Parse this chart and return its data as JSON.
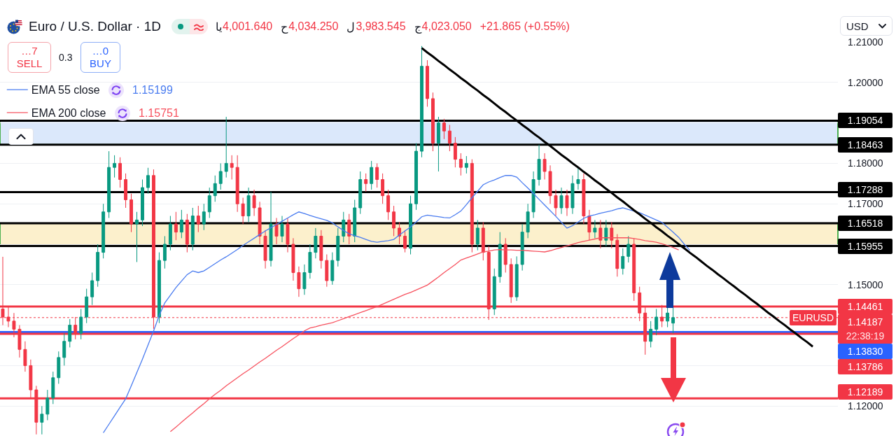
{
  "chart_data": {
    "type": "candlestick",
    "title": "Euro / U.S. Dollar · 1D",
    "categories": [
      null,
      null,
      null,
      null,
      null,
      null,
      null,
      null,
      null,
      null,
      null,
      null,
      null,
      null,
      null,
      null,
      null,
      null,
      null,
      null,
      null,
      null,
      null,
      null,
      null,
      null,
      null,
      null,
      null,
      null,
      null,
      null,
      null,
      null,
      null,
      null,
      null,
      null,
      null,
      null,
      null,
      null,
      null,
      null,
      null,
      null,
      null,
      null,
      null,
      null,
      null,
      null,
      null,
      null,
      null,
      null,
      null,
      null,
      null,
      null,
      null,
      null,
      null,
      null,
      null,
      null,
      null,
      null,
      null,
      null,
      null,
      null,
      null,
      null,
      null,
      null,
      null,
      null,
      null,
      null,
      null,
      null,
      null,
      null,
      null,
      null,
      null,
      null,
      null,
      null,
      null,
      null,
      null,
      null,
      null,
      null,
      null,
      null,
      null,
      null,
      null,
      null,
      null,
      null,
      null,
      null,
      null,
      null,
      null,
      null,
      null,
      null,
      null,
      null,
      null,
      null,
      null,
      null,
      null,
      null,
      null,
      null,
      null,
      null,
      null,
      null,
      null,
      null,
      null,
      null,
      null,
      null,
      null,
      null,
      null,
      null,
      null,
      null,
      null,
      null,
      null,
      null,
      null,
      null,
      null,
      null,
      null,
      null,
      null,
      null
    ],
    "ohlc": [
      [
        1.144,
        1.1569,
        1.14,
        1.142
      ],
      [
        1.142,
        1.1445,
        1.1395,
        1.141
      ],
      [
        1.141,
        1.143,
        1.137,
        1.139
      ],
      [
        1.139,
        1.14,
        1.132,
        1.134
      ],
      [
        1.134,
        1.136,
        1.1285,
        1.13
      ],
      [
        1.13,
        1.1315,
        1.122,
        1.124
      ],
      [
        1.124,
        1.125,
        1.113,
        1.116
      ],
      [
        1.116,
        1.12,
        1.113,
        1.118
      ],
      [
        1.118,
        1.124,
        1.1165,
        1.122
      ],
      [
        1.122,
        1.1285,
        1.1205,
        1.127
      ],
      [
        1.127,
        1.1335,
        1.1255,
        1.132
      ],
      [
        1.132,
        1.138,
        1.13,
        1.136
      ],
      [
        1.136,
        1.1415,
        1.1345,
        1.14
      ],
      [
        1.14,
        1.142,
        1.1365,
        1.138
      ],
      [
        1.138,
        1.144,
        1.1365,
        1.142
      ],
      [
        1.142,
        1.149,
        1.1405,
        1.147
      ],
      [
        1.147,
        1.153,
        1.145,
        1.151
      ],
      [
        1.151,
        1.16,
        1.1495,
        1.158
      ],
      [
        1.158,
        1.17,
        1.1565,
        1.168
      ],
      [
        1.168,
        1.183,
        1.1665,
        1.179
      ],
      [
        1.179,
        1.182,
        1.1765,
        1.18
      ],
      [
        1.18,
        1.1815,
        1.174,
        1.176
      ],
      [
        1.176,
        1.1775,
        1.169,
        1.171
      ],
      [
        1.171,
        1.1725,
        1.163,
        1.165
      ],
      [
        1.165,
        1.168,
        1.1556,
        1.166
      ],
      [
        1.166,
        1.176,
        1.1645,
        1.174
      ],
      [
        1.174,
        1.1789,
        1.1725,
        1.177
      ],
      [
        1.177,
        1.1785,
        1.1391,
        1.142
      ],
      [
        1.142,
        1.158,
        1.1405,
        1.156
      ],
      [
        1.156,
        1.162,
        1.154,
        1.16
      ],
      [
        1.16,
        1.167,
        1.1585,
        1.165
      ],
      [
        1.165,
        1.168,
        1.161,
        1.163
      ],
      [
        1.163,
        1.1685,
        1.1615,
        1.166
      ],
      [
        1.166,
        1.1675,
        1.158,
        1.16
      ],
      [
        1.16,
        1.169,
        1.1585,
        1.167
      ],
      [
        1.167,
        1.1695,
        1.163,
        1.165
      ],
      [
        1.165,
        1.17,
        1.1635,
        1.168
      ],
      [
        1.168,
        1.174,
        1.1665,
        1.172
      ],
      [
        1.172,
        1.177,
        1.1705,
        1.175
      ],
      [
        1.175,
        1.18,
        1.1735,
        1.178
      ],
      [
        1.178,
        1.1915,
        1.1765,
        1.18
      ],
      [
        1.18,
        1.182,
        1.176,
        1.179
      ],
      [
        1.179,
        1.182,
        1.168,
        1.17
      ],
      [
        1.17,
        1.1715,
        1.165,
        1.167
      ],
      [
        1.167,
        1.174,
        1.1655,
        1.172
      ],
      [
        1.172,
        1.1735,
        1.167,
        1.169
      ],
      [
        1.169,
        1.1705,
        1.16,
        1.162
      ],
      [
        1.162,
        1.1635,
        1.154,
        1.156
      ],
      [
        1.156,
        1.173,
        1.1545,
        1.165
      ],
      [
        1.165,
        1.1665,
        1.16,
        1.162
      ],
      [
        1.162,
        1.167,
        1.1605,
        1.165
      ],
      [
        1.165,
        1.1665,
        1.158,
        1.16
      ],
      [
        1.16,
        1.1615,
        1.151,
        1.153
      ],
      [
        1.153,
        1.1545,
        1.147,
        1.149
      ],
      [
        1.149,
        1.155,
        1.1475,
        1.153
      ],
      [
        1.153,
        1.16,
        1.1515,
        1.158
      ],
      [
        1.158,
        1.164,
        1.1565,
        1.162
      ],
      [
        1.162,
        1.1635,
        1.154,
        1.156
      ],
      [
        1.156,
        1.1575,
        1.1495,
        1.151
      ],
      [
        1.151,
        1.158,
        1.15,
        1.156
      ],
      [
        1.156,
        1.164,
        1.1545,
        1.162
      ],
      [
        1.162,
        1.168,
        1.1605,
        1.166
      ],
      [
        1.166,
        1.1675,
        1.16,
        1.162
      ],
      [
        1.162,
        1.171,
        1.1605,
        1.169
      ],
      [
        1.169,
        1.178,
        1.1675,
        1.176
      ],
      [
        1.176,
        1.1775,
        1.173,
        1.175
      ],
      [
        1.175,
        1.1806,
        1.1735,
        1.179
      ],
      [
        1.179,
        1.18,
        1.174,
        1.176
      ],
      [
        1.176,
        1.1775,
        1.17,
        1.172
      ],
      [
        1.172,
        1.1735,
        1.166,
        1.168
      ],
      [
        1.168,
        1.1695,
        1.162,
        1.164
      ],
      [
        1.164,
        1.1655,
        1.16,
        1.162
      ],
      [
        1.162,
        1.1635,
        1.158,
        1.159
      ],
      [
        1.159,
        1.172,
        1.1575,
        1.17
      ],
      [
        1.17,
        1.185,
        1.1685,
        1.183
      ],
      [
        1.183,
        1.209,
        1.1815,
        1.204
      ],
      [
        1.204,
        1.2055,
        1.194,
        1.196
      ],
      [
        1.196,
        1.1975,
        1.183,
        1.185
      ],
      [
        1.185,
        1.1915,
        1.178,
        1.19
      ],
      [
        1.19,
        1.191,
        1.186,
        1.188
      ],
      [
        1.188,
        1.1895,
        1.183,
        1.185
      ],
      [
        1.185,
        1.1865,
        1.179,
        1.181
      ],
      [
        1.181,
        1.1825,
        1.177,
        1.179
      ],
      [
        1.179,
        1.1818,
        1.1775,
        1.18
      ],
      [
        1.18,
        1.181,
        1.158,
        1.16
      ],
      [
        1.16,
        1.166,
        1.1585,
        1.164
      ],
      [
        1.164,
        1.1655,
        1.156,
        1.158
      ],
      [
        1.158,
        1.1595,
        1.1413,
        1.144
      ],
      [
        1.144,
        1.154,
        1.1425,
        1.152
      ],
      [
        1.152,
        1.163,
        1.1505,
        1.16
      ],
      [
        1.16,
        1.1615,
        1.153,
        1.155
      ],
      [
        1.155,
        1.1565,
        1.1455,
        1.147
      ],
      [
        1.147,
        1.157,
        1.146,
        1.155
      ],
      [
        1.155,
        1.165,
        1.1535,
        1.163
      ],
      [
        1.163,
        1.17,
        1.1615,
        1.168
      ],
      [
        1.168,
        1.178,
        1.1665,
        1.176
      ],
      [
        1.176,
        1.1846,
        1.1745,
        1.181
      ],
      [
        1.181,
        1.1825,
        1.176,
        1.178
      ],
      [
        1.178,
        1.1795,
        1.17,
        1.172
      ],
      [
        1.172,
        1.1735,
        1.167,
        1.169
      ],
      [
        1.169,
        1.174,
        1.1675,
        1.172
      ],
      [
        1.172,
        1.1735,
        1.167,
        1.169
      ],
      [
        1.169,
        1.177,
        1.1675,
        1.175
      ],
      [
        1.175,
        1.179,
        1.1735,
        1.176
      ],
      [
        1.176,
        1.1775,
        1.165,
        1.167
      ],
      [
        1.167,
        1.1685,
        1.161,
        1.163
      ],
      [
        1.163,
        1.166,
        1.1615,
        1.164
      ],
      [
        1.164,
        1.166,
        1.159,
        1.161
      ],
      [
        1.161,
        1.166,
        1.1595,
        1.164
      ],
      [
        1.164,
        1.1655,
        1.159,
        1.161
      ],
      [
        1.161,
        1.1625,
        1.152,
        1.154
      ],
      [
        1.154,
        1.159,
        1.1525,
        1.157
      ],
      [
        1.157,
        1.162,
        1.1555,
        1.16
      ],
      [
        1.16,
        1.1615,
        1.146,
        1.148
      ],
      [
        1.148,
        1.1495,
        1.141,
        1.143
      ],
      [
        1.143,
        1.1445,
        1.1327,
        1.136
      ],
      [
        1.136,
        1.141,
        1.1345,
        1.139
      ],
      [
        1.139,
        1.144,
        1.1375,
        1.142
      ],
      [
        1.142,
        1.145,
        1.1395,
        1.141
      ],
      [
        1.141,
        1.1445,
        1.1395,
        1.143
      ],
      [
        1.1405,
        1.1445,
        1.138,
        1.14187
      ],
      null,
      null,
      null,
      null,
      null,
      null,
      null,
      null,
      null,
      null,
      null,
      null,
      null,
      null,
      null,
      null,
      null,
      null,
      null,
      null,
      null,
      null,
      null,
      null,
      null,
      null,
      null,
      null,
      null
    ],
    "colors": [
      "#f23645",
      "#f23645",
      "#f23645",
      "#f23645",
      "#f23645",
      "#f23645",
      "#f23645",
      "#089981",
      "#089981",
      "#089981",
      "#089981",
      "#089981",
      "#089981",
      "#f23645",
      "#089981",
      "#089981",
      "#089981",
      "#089981",
      "#089981",
      "#089981",
      "#089981",
      "#f23645",
      "#f23645",
      "#f23645",
      "#089981",
      "#089981",
      "#089981",
      "#f23645",
      "#089981",
      "#089981",
      "#089981",
      "#f23645",
      "#089981",
      "#f23645",
      "#089981",
      "#f23645",
      "#089981",
      "#089981",
      "#089981",
      "#089981",
      "#089981",
      "#f23645",
      "#f23645",
      "#f23645",
      "#089981",
      "#f23645",
      "#f23645",
      "#f23645",
      "#089981",
      "#f23645",
      "#089981",
      "#f23645",
      "#f23645",
      "#f23645",
      "#089981",
      "#089981",
      "#089981",
      "#f23645",
      "#f23645",
      "#089981",
      "#089981",
      "#089981",
      "#f23645",
      "#089981",
      "#089981",
      "#f23645",
      "#089981",
      "#f23645",
      "#f23645",
      "#f23645",
      "#f23645",
      "#f23645",
      "#f23645",
      "#089981",
      "#089981",
      "#089981",
      "#f23645",
      "#f23645",
      "#089981",
      "#f23645",
      "#f23645",
      "#f23645",
      "#f23645",
      "#089981",
      "#f23645",
      "#089981",
      "#f23645",
      "#f23645",
      "#089981",
      "#089981",
      "#f23645",
      "#f23645",
      "#089981",
      "#089981",
      "#089981",
      "#089981",
      "#089981",
      "#f23645",
      "#f23645",
      "#f23645",
      "#089981",
      "#f23645",
      "#089981",
      "#089981",
      "#f23645",
      "#f23645",
      "#089981",
      "#f23645",
      "#089981",
      "#f23645",
      "#f23645",
      "#089981",
      "#089981",
      "#f23645",
      "#f23645",
      "#f23645",
      "#089981",
      "#089981",
      "#f23645",
      "#089981",
      "#089981",
      null,
      null,
      null,
      null,
      null,
      null,
      null,
      null,
      null,
      null,
      null,
      null,
      null,
      null,
      null,
      null,
      null,
      null,
      null,
      null,
      null,
      null,
      null,
      null,
      null,
      null,
      null,
      null,
      null
    ],
    "series": [
      {
        "name": "EMA 55 close",
        "type": "line",
        "color": "#4a7cf0",
        "values": [
          null,
          null,
          null,
          null,
          null,
          null,
          null,
          null,
          null,
          null,
          null,
          null,
          null,
          null,
          null,
          null,
          null,
          null,
          1.1134,
          1.1155,
          1.1176,
          1.1197,
          1.1218,
          1.125,
          1.1283,
          1.1316,
          1.1351,
          1.1386,
          1.1424,
          1.1455,
          1.1474,
          1.1493,
          1.1509,
          1.1525,
          1.1534,
          1.153,
          1.1534,
          1.1543,
          1.1552,
          1.1561,
          1.1569,
          1.1578,
          1.1587,
          1.1597,
          1.1606,
          1.1615,
          1.1624,
          1.1633,
          1.1641,
          1.1649,
          1.1657,
          1.1665,
          1.1673,
          1.168,
          1.1676,
          1.1671,
          1.1667,
          1.1663,
          1.1659,
          1.1653,
          1.1643,
          1.1634,
          1.1626,
          1.1621,
          1.1617,
          1.1612,
          1.1607,
          1.1605,
          1.1607,
          1.1609,
          1.1612,
          1.1623,
          1.1633,
          1.1643,
          1.1655,
          1.1668,
          1.1672,
          1.167,
          1.1668,
          1.1666,
          1.1665,
          1.1673,
          1.1682,
          1.1698,
          1.1715,
          1.1731,
          1.1747,
          1.1754,
          1.1759,
          1.1765,
          1.177,
          1.177,
          1.1766,
          1.1752,
          1.1739,
          1.1725,
          1.1711,
          1.1697,
          1.1683,
          1.1669,
          1.1654,
          1.164,
          1.1646,
          1.1655,
          1.1664,
          1.167,
          1.1673,
          1.1677,
          1.168,
          1.1683,
          1.1687,
          1.169,
          1.1686,
          1.1682,
          1.1678,
          1.1672,
          1.1666,
          1.166,
          1.1654,
          1.1642,
          1.163,
          1.1617,
          1.16,
          1.1585,
          null,
          null,
          null,
          null,
          null,
          null,
          null,
          null,
          null,
          null,
          null,
          null,
          null,
          null,
          null,
          null,
          null,
          null,
          null,
          null,
          null,
          null,
          null,
          null,
          null,
          null
        ]
      },
      {
        "name": "EMA 200 close",
        "type": "line",
        "color": "#f7525f",
        "values": [
          null,
          null,
          null,
          null,
          null,
          null,
          null,
          null,
          null,
          null,
          null,
          null,
          null,
          null,
          null,
          null,
          null,
          null,
          null,
          null,
          null,
          null,
          null,
          null,
          null,
          null,
          null,
          null,
          null,
          null,
          1.1137,
          1.1148,
          1.116,
          1.1172,
          1.1183,
          1.1195,
          1.1206,
          1.1218,
          1.1229,
          1.1239,
          1.125,
          1.126,
          1.127,
          1.128,
          1.1289,
          1.1299,
          1.1309,
          1.1318,
          1.1328,
          1.1338,
          1.1347,
          1.1357,
          1.1367,
          1.1376,
          1.1386,
          1.1393,
          1.1396,
          1.14,
          1.1403,
          1.1406,
          1.1411,
          1.1416,
          1.1421,
          1.1426,
          1.1431,
          1.1436,
          1.1441,
          1.1446,
          1.1452,
          1.1458,
          1.1464,
          1.147,
          1.1476,
          1.1481,
          1.1487,
          1.1493,
          1.1499,
          1.1509,
          1.1519,
          1.153,
          1.154,
          1.155,
          1.1561,
          1.1566,
          1.1571,
          1.1576,
          1.1581,
          1.1583,
          1.1586,
          1.1587,
          1.1586,
          1.1586,
          1.1585,
          1.1585,
          1.1584,
          1.1583,
          1.1582,
          1.1581,
          1.1584,
          1.1588,
          1.1592,
          1.1596,
          1.16,
          1.1604,
          1.1607,
          1.161,
          1.1613,
          1.1616,
          1.1616,
          1.1616,
          1.1616,
          1.1616,
          1.1616,
          1.1614,
          1.1612,
          1.1609,
          1.1607,
          1.1605,
          1.1601,
          1.1597,
          1.1592,
          1.1586,
          null,
          null,
          null,
          null,
          null,
          null,
          null,
          null,
          null,
          null,
          null,
          null,
          null,
          null,
          null,
          null,
          null,
          null,
          null,
          null,
          null,
          null,
          null,
          null,
          null,
          null,
          null,
          null
        ]
      },
      {
        "type": "line",
        "color": "#000000",
        "values": [
          null,
          null,
          null,
          null,
          null,
          null,
          null,
          null,
          null,
          null,
          null,
          null,
          null,
          null,
          null,
          null,
          null,
          null,
          null,
          null,
          null,
          null,
          null,
          null,
          null,
          null,
          null,
          null,
          null,
          null,
          null,
          null,
          null,
          null,
          null,
          null,
          null,
          null,
          null,
          null,
          null,
          null,
          null,
          null,
          null,
          null,
          null,
          null,
          null,
          null,
          null,
          null,
          null,
          null,
          null,
          null,
          null,
          null,
          null,
          null,
          null,
          null,
          null,
          null,
          null,
          null,
          null,
          null,
          null,
          null,
          null,
          null,
          null,
          null,
          null,
          1.2085,
          1.2074,
          1.2064,
          1.2053,
          1.2043,
          1.2032,
          1.2022,
          1.2011,
          1.2001,
          1.199,
          1.198,
          1.1969,
          1.1959,
          1.1948,
          1.1937,
          1.1927,
          1.1916,
          1.1906,
          1.1895,
          1.1885,
          1.1874,
          1.1864,
          1.1853,
          1.1843,
          1.1832,
          1.1821,
          1.1811,
          1.18,
          1.179,
          1.1779,
          1.1769,
          1.1758,
          1.1748,
          1.1737,
          1.1727,
          1.1716,
          1.1706,
          1.1695,
          1.1684,
          1.1674,
          1.1663,
          1.1653,
          1.1642,
          1.1632,
          1.1621,
          1.1611,
          1.16,
          1.159,
          1.1579,
          1.1569,
          1.1558,
          1.1547,
          1.1537,
          1.1526,
          1.1516,
          1.1505,
          1.1495,
          1.1484,
          1.1474,
          1.1463,
          1.1453,
          1.1442,
          1.1431,
          1.1421,
          1.141,
          1.14,
          1.1389,
          1.1379,
          1.1368,
          1.1358,
          1.1347,
          null,
          null,
          null,
          null
        ]
      }
    ],
    "ylim": [
      1.1126,
      1.21
    ],
    "yticks": [
      {
        "value": 1.21,
        "label": "1.21000"
      },
      {
        "value": 1.2,
        "label": "1.20000"
      },
      {
        "value": 1.19,
        "label": null
      },
      {
        "value": 1.18,
        "label": "1.18000"
      },
      {
        "value": 1.17,
        "label": "1.17000"
      },
      {
        "value": 1.16,
        "label": null
      },
      {
        "value": 1.15,
        "label": "1.15000"
      },
      {
        "value": 1.14,
        "label": null
      },
      {
        "value": 1.13,
        "label": null
      },
      {
        "value": 1.12,
        "label": "1.12000"
      }
    ],
    "grid": "y",
    "tick_labels": "y",
    "legend": "top left",
    "ref_lines": [
      {
        "axis": "y",
        "value": 1.19054,
        "label": "1.19054",
        "color": "#000000"
      },
      {
        "axis": "y",
        "value": 1.18463,
        "label": "1.18463",
        "color": "#000000"
      },
      {
        "axis": "y",
        "value": 1.17288,
        "label": "1.17288",
        "color": "#000000"
      },
      {
        "axis": "y",
        "value": 1.16518,
        "label": "1.16518",
        "color": "#000000"
      },
      {
        "axis": "y",
        "value": 1.15955,
        "label": "1.15955",
        "color": "#000000"
      },
      {
        "axis": "y",
        "value": 1.14461,
        "label": "1.14461",
        "color": "#f23645"
      },
      {
        "axis": "y",
        "value": 1.14187,
        "label": "1.14187",
        "color": "#f23645",
        "line_style": "dotted"
      },
      {
        "axis": "y",
        "value": 1.1383,
        "label": "1.13830",
        "color": "#2962ff"
      },
      {
        "axis": "y",
        "value": 1.13786,
        "label": "1.13786",
        "color": "#f23645"
      },
      {
        "axis": "y",
        "value": 1.12189,
        "label": "1.12189",
        "color": "#f23645"
      }
    ],
    "bands": [
      {
        "axis": "y",
        "from": 1.18463,
        "to": 1.19054,
        "color": "#dbe8fb"
      },
      {
        "axis": "y",
        "from": 1.15955,
        "to": 1.16518,
        "color": "#fcf0cc"
      }
    ],
    "annotations": [
      "يا4,001.640",
      "ح4,034.250",
      "ل3,983.545",
      "ج4,023.050",
      "+21.865 (+0.55%)",
      "…7",
      "SELL",
      "0.3",
      "…0",
      "BUY",
      "1.15199",
      "1.15751",
      "USD",
      "EURUSD",
      "22:38:19"
    ]
  }
}
